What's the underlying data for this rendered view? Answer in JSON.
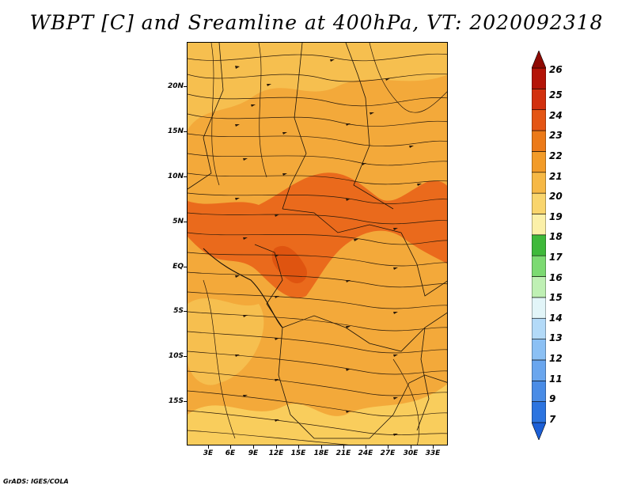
{
  "title": "WBPT [C] and Sreamline at 400hPa, VT: 2020092318",
  "credit": "GrADS: IGES/COLA",
  "map": {
    "latitude_labels": [
      "20N",
      "15N",
      "10N",
      "5N",
      "EQ",
      "5S",
      "10S",
      "15S"
    ],
    "longitude_labels": [
      "3E",
      "6E",
      "9E",
      "12E",
      "15E",
      "18E",
      "21E",
      "24E",
      "27E",
      "30E",
      "33E"
    ],
    "base_fill_color": "#f3a93a",
    "warm_region_color": "#ea6a1c",
    "cool_region_color": "#f9cd5c"
  },
  "colorbar": {
    "labels": [
      "7",
      "9",
      "11",
      "12",
      "13",
      "14",
      "15",
      "16",
      "17",
      "18",
      "19",
      "20",
      "21",
      "22",
      "23",
      "24",
      "25",
      "26"
    ],
    "colors": [
      "#1c5fd6",
      "#2c74e0",
      "#4a8ce6",
      "#6aa6ee",
      "#8bc0f4",
      "#b3daf8",
      "#e2f5f8",
      "#bff0b4",
      "#7cda72",
      "#3fb93b",
      "#fbf0a8",
      "#f9d56d",
      "#f6b845",
      "#f29b28",
      "#ec7a18",
      "#e45514",
      "#d2300e",
      "#b41408",
      "#8e0a04"
    ]
  }
}
